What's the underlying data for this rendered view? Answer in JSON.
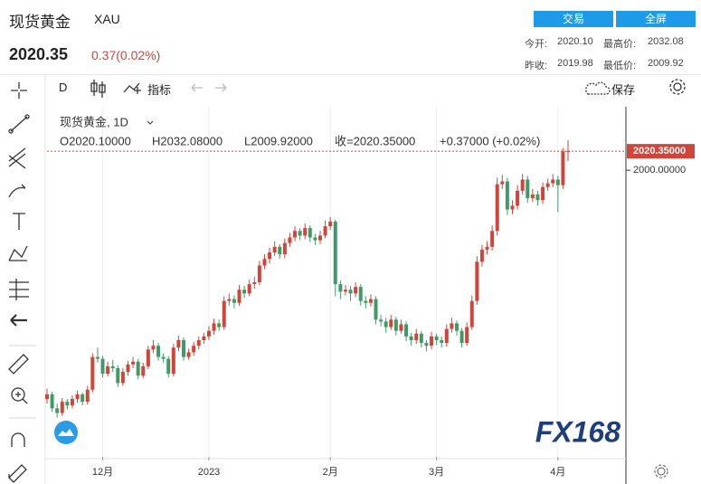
{
  "header": {
    "name": "现货黄金",
    "symbol": "XAU",
    "price": "2020.35",
    "change": "0.37(0.02%)",
    "buttons": [
      "交易",
      "全屏"
    ],
    "stats": [
      [
        "今开:",
        "2020.10",
        "最高价:",
        "2032.08"
      ],
      [
        "昨收:",
        "2019.98",
        "最低价:",
        "2009.92"
      ]
    ]
  },
  "toolbar": {
    "interval": "D",
    "indicators": "指标",
    "save": "保存"
  },
  "watermark": "FX168",
  "chart_data": {
    "type": "candlestick",
    "title": "现货黄金, 1D",
    "legend": [
      "O2020.10000",
      "H2032.08000",
      "L2009.92000",
      "收=2020.35000",
      "+0.37000 (+0.02%)"
    ],
    "up_color": "#d0453a",
    "down_color": "#3f9a68",
    "ylim": [
      1693,
      2068
    ],
    "yticks": [
      {
        "value": 2000,
        "label": "2000.00000"
      }
    ],
    "last_price": {
      "value": 2020.35,
      "label": "2020.35000"
    },
    "xlim": [
      0,
      103
    ],
    "xticks": [
      {
        "value": 11,
        "label": "12月"
      },
      {
        "value": 32,
        "label": "2023"
      },
      {
        "value": 56,
        "label": "2月"
      },
      {
        "value": 77,
        "label": "3月"
      },
      {
        "value": 101,
        "label": "4月"
      }
    ],
    "candles": [
      [
        1755,
        1766,
        1750,
        1760
      ],
      [
        1760,
        1763,
        1741,
        1745
      ],
      [
        1745,
        1750,
        1735,
        1740
      ],
      [
        1740,
        1756,
        1737,
        1752
      ],
      [
        1752,
        1755,
        1744,
        1748
      ],
      [
        1748,
        1759,
        1745,
        1755
      ],
      [
        1755,
        1764,
        1751,
        1760
      ],
      [
        1760,
        1762,
        1748,
        1752
      ],
      [
        1752,
        1769,
        1749,
        1765
      ],
      [
        1765,
        1804,
        1762,
        1800
      ],
      [
        1800,
        1810,
        1794,
        1798
      ],
      [
        1798,
        1801,
        1778,
        1782
      ],
      [
        1782,
        1795,
        1779,
        1790
      ],
      [
        1790,
        1797,
        1784,
        1788
      ],
      [
        1788,
        1791,
        1768,
        1772
      ],
      [
        1772,
        1788,
        1769,
        1784
      ],
      [
        1784,
        1796,
        1780,
        1792
      ],
      [
        1792,
        1800,
        1788,
        1795
      ],
      [
        1795,
        1798,
        1776,
        1780
      ],
      [
        1780,
        1794,
        1777,
        1790
      ],
      [
        1790,
        1812,
        1787,
        1808
      ],
      [
        1808,
        1818,
        1804,
        1812
      ],
      [
        1812,
        1815,
        1796,
        1800
      ],
      [
        1800,
        1804,
        1794,
        1798
      ],
      [
        1798,
        1801,
        1778,
        1782
      ],
      [
        1782,
        1814,
        1779,
        1810
      ],
      [
        1810,
        1823,
        1806,
        1818
      ],
      [
        1818,
        1821,
        1796,
        1800
      ],
      [
        1800,
        1809,
        1797,
        1805
      ],
      [
        1805,
        1816,
        1801,
        1812
      ],
      [
        1812,
        1822,
        1808,
        1818
      ],
      [
        1818,
        1826,
        1814,
        1822
      ],
      [
        1822,
        1833,
        1818,
        1828
      ],
      [
        1828,
        1841,
        1824,
        1836
      ],
      [
        1836,
        1840,
        1828,
        1832
      ],
      [
        1832,
        1865,
        1829,
        1860
      ],
      [
        1860,
        1868,
        1855,
        1862
      ],
      [
        1862,
        1866,
        1852,
        1858
      ],
      [
        1858,
        1877,
        1855,
        1872
      ],
      [
        1872,
        1876,
        1863,
        1868
      ],
      [
        1868,
        1883,
        1865,
        1878
      ],
      [
        1878,
        1886,
        1873,
        1880
      ],
      [
        1880,
        1903,
        1877,
        1898
      ],
      [
        1898,
        1910,
        1894,
        1905
      ],
      [
        1905,
        1917,
        1900,
        1912
      ],
      [
        1912,
        1924,
        1908,
        1918
      ],
      [
        1918,
        1921,
        1905,
        1910
      ],
      [
        1910,
        1927,
        1906,
        1922
      ],
      [
        1922,
        1933,
        1918,
        1928
      ],
      [
        1928,
        1940,
        1924,
        1935
      ],
      [
        1935,
        1938,
        1925,
        1930
      ],
      [
        1930,
        1943,
        1926,
        1938
      ],
      [
        1938,
        1941,
        1923,
        1928
      ],
      [
        1928,
        1932,
        1920,
        1925
      ],
      [
        1925,
        1935,
        1921,
        1930
      ],
      [
        1930,
        1946,
        1927,
        1940
      ],
      [
        1940,
        1950,
        1936,
        1945
      ],
      [
        1945,
        1947,
        1865,
        1878
      ],
      [
        1878,
        1882,
        1862,
        1870
      ],
      [
        1870,
        1877,
        1866,
        1872
      ],
      [
        1872,
        1876,
        1860,
        1868
      ],
      [
        1868,
        1880,
        1864,
        1875
      ],
      [
        1875,
        1878,
        1855,
        1860
      ],
      [
        1860,
        1865,
        1852,
        1858
      ],
      [
        1858,
        1867,
        1854,
        1862
      ],
      [
        1862,
        1865,
        1835,
        1840
      ],
      [
        1840,
        1845,
        1833,
        1838
      ],
      [
        1838,
        1842,
        1826,
        1832
      ],
      [
        1832,
        1845,
        1829,
        1840
      ],
      [
        1840,
        1843,
        1823,
        1828
      ],
      [
        1828,
        1840,
        1825,
        1835
      ],
      [
        1835,
        1838,
        1817,
        1822
      ],
      [
        1822,
        1826,
        1812,
        1818
      ],
      [
        1818,
        1830,
        1814,
        1825
      ],
      [
        1825,
        1828,
        1810,
        1815
      ],
      [
        1815,
        1818,
        1806,
        1812
      ],
      [
        1812,
        1827,
        1808,
        1822
      ],
      [
        1822,
        1825,
        1813,
        1818
      ],
      [
        1818,
        1822,
        1810,
        1815
      ],
      [
        1815,
        1835,
        1811,
        1830
      ],
      [
        1830,
        1842,
        1826,
        1836
      ],
      [
        1836,
        1839,
        1823,
        1828
      ],
      [
        1828,
        1831,
        1810,
        1815
      ],
      [
        1815,
        1837,
        1812,
        1832
      ],
      [
        1832,
        1866,
        1829,
        1860
      ],
      [
        1860,
        1908,
        1856,
        1902
      ],
      [
        1902,
        1920,
        1897,
        1915
      ],
      [
        1915,
        1924,
        1910,
        1918
      ],
      [
        1918,
        1941,
        1914,
        1935
      ],
      [
        1935,
        1992,
        1930,
        1985
      ],
      [
        1985,
        1995,
        1980,
        1988
      ],
      [
        1988,
        1992,
        1952,
        1958
      ],
      [
        1958,
        1968,
        1953,
        1962
      ],
      [
        1962,
        1984,
        1958,
        1978
      ],
      [
        1978,
        1996,
        1974,
        1990
      ],
      [
        1990,
        1994,
        1965,
        1970
      ],
      [
        1970,
        1980,
        1966,
        1974
      ],
      [
        1974,
        1978,
        1962,
        1968
      ],
      [
        1968,
        1987,
        1964,
        1982
      ],
      [
        1982,
        1991,
        1978,
        1986
      ],
      [
        1986,
        1996,
        1982,
        1990
      ],
      [
        1990,
        1994,
        1955,
        1984
      ],
      [
        1984,
        2024,
        1980,
        2020
      ],
      [
        2020.1,
        2032.08,
        2009.92,
        2020.35
      ]
    ]
  }
}
